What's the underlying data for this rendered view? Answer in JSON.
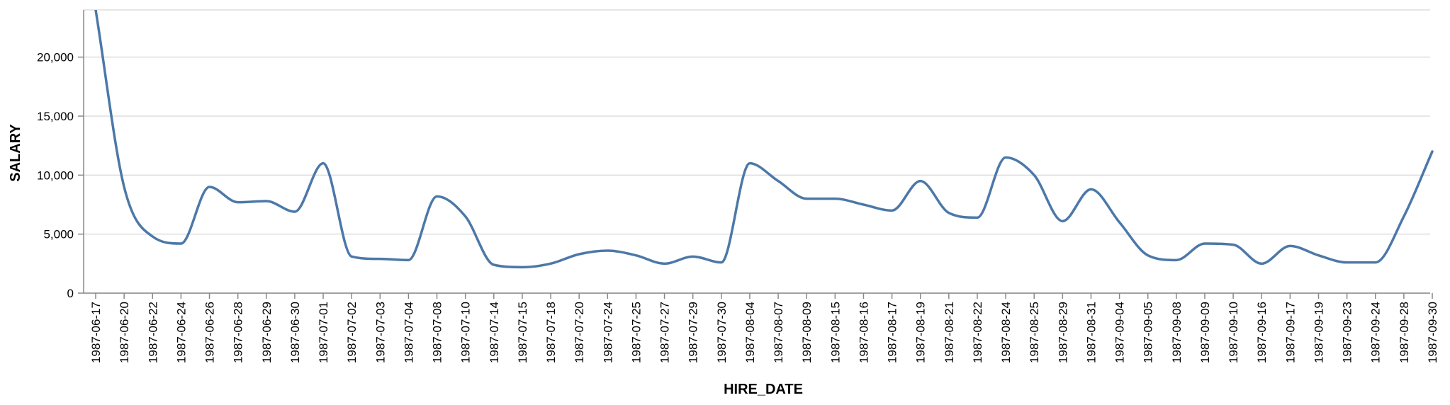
{
  "chart_data": {
    "type": "line",
    "xlabel": "HIRE_DATE",
    "ylabel": "SALARY",
    "ylim": [
      0,
      24000
    ],
    "yticks": [
      0,
      5000,
      10000,
      15000,
      20000
    ],
    "ytick_labels": [
      "0",
      "5,000",
      "10,000",
      "15,000",
      "20,000"
    ],
    "grid": true,
    "interpolation": "monotone",
    "line_color": "#4c78a8",
    "x": [
      "1987-06-17",
      "1987-06-20",
      "1987-06-22",
      "1987-06-24",
      "1987-06-26",
      "1987-06-28",
      "1987-06-29",
      "1987-06-30",
      "1987-07-01",
      "1987-07-02",
      "1987-07-03",
      "1987-07-04",
      "1987-07-08",
      "1987-07-10",
      "1987-07-14",
      "1987-07-15",
      "1987-07-18",
      "1987-07-20",
      "1987-07-24",
      "1987-07-25",
      "1987-07-27",
      "1987-07-29",
      "1987-07-30",
      "1987-08-04",
      "1987-08-07",
      "1987-08-09",
      "1987-08-15",
      "1987-08-16",
      "1987-08-17",
      "1987-08-19",
      "1987-08-21",
      "1987-08-22",
      "1987-08-24",
      "1987-08-25",
      "1987-08-29",
      "1987-08-31",
      "1987-09-04",
      "1987-09-05",
      "1987-09-08",
      "1987-09-09",
      "1987-09-10",
      "1987-09-16",
      "1987-09-17",
      "1987-09-19",
      "1987-09-23",
      "1987-09-24",
      "1987-09-28",
      "1987-09-30"
    ],
    "y": [
      24000,
      9000,
      4800,
      4200,
      9000,
      7700,
      7800,
      6900,
      11000,
      3100,
      2900,
      2800,
      8200,
      6500,
      2400,
      2200,
      2500,
      3300,
      3600,
      3200,
      2500,
      3100,
      2600,
      11000,
      9500,
      8000,
      8000,
      7500,
      7000,
      9500,
      6800,
      6400,
      11500,
      10000,
      6100,
      8800,
      6000,
      3200,
      2800,
      4200,
      4100,
      2500,
      4000,
      3200,
      2600,
      2600,
      6500,
      12000
    ]
  }
}
